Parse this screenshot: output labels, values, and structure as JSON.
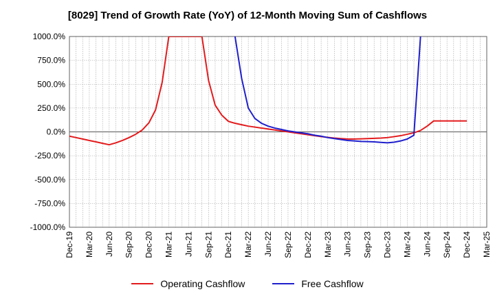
{
  "chart_data": {
    "type": "line",
    "title": "[8029]  Trend of Growth Rate (YoY) of 12-Month Moving Sum of Cashflows",
    "xlabel": "",
    "ylabel": "",
    "ylim": [
      -1000,
      1000
    ],
    "y_ticks": [
      "1000.0%",
      "750.0%",
      "500.0%",
      "250.0%",
      "0.0%",
      "-250.0%",
      "-500.0%",
      "-750.0%",
      "-1000.0%"
    ],
    "x_ticks": [
      "Dec-19",
      "Mar-20",
      "Jun-20",
      "Sep-20",
      "Dec-20",
      "Mar-21",
      "Jun-21",
      "Sep-21",
      "Dec-21",
      "Mar-22",
      "Jun-22",
      "Sep-22",
      "Dec-22",
      "Mar-23",
      "Jun-23",
      "Sep-23",
      "Dec-23",
      "Mar-24",
      "Jun-24",
      "Sep-24",
      "Dec-24",
      "Mar-25"
    ],
    "grid": true,
    "legend_position": "bottom",
    "series": [
      {
        "name": "Operating Cashflow",
        "color": "#e31a1c",
        "x": [
          "2019-12",
          "2020-01",
          "2020-02",
          "2020-03",
          "2020-04",
          "2020-05",
          "2020-06",
          "2020-07",
          "2020-08",
          "2020-09",
          "2020-10",
          "2020-11",
          "2020-12",
          "2021-01",
          "2021-02",
          "2021-03",
          "2021-08",
          "2021-09",
          "2021-10",
          "2021-11",
          "2021-12",
          "2022-01",
          "2022-02",
          "2022-03",
          "2022-04",
          "2022-05",
          "2022-06",
          "2022-07",
          "2022-08",
          "2022-09",
          "2022-10",
          "2022-11",
          "2022-12",
          "2023-01",
          "2023-02",
          "2023-03",
          "2023-04",
          "2023-05",
          "2023-06",
          "2023-07",
          "2023-08",
          "2023-09",
          "2023-10",
          "2023-11",
          "2023-12",
          "2024-01",
          "2024-02",
          "2024-03",
          "2024-04",
          "2024-05",
          "2024-06",
          "2024-07",
          "2024-08",
          "2024-09",
          "2024-10",
          "2024-11",
          "2024-12"
        ],
        "values": [
          -45,
          -60,
          -75,
          -90,
          -105,
          -120,
          -135,
          -115,
          -90,
          -60,
          -25,
          20,
          95,
          230,
          520,
          1000,
          1000,
          540,
          280,
          175,
          110,
          90,
          75,
          60,
          50,
          40,
          30,
          20,
          10,
          0,
          -10,
          -20,
          -30,
          -40,
          -50,
          -58,
          -65,
          -70,
          -75,
          -75,
          -73,
          -70,
          -68,
          -65,
          -60,
          -50,
          -40,
          -25,
          -10,
          15,
          60,
          115,
          115,
          115,
          115,
          115,
          115
        ]
      },
      {
        "name": "Free Cashflow",
        "color": "#1f1fcc",
        "x": [
          "2022-01",
          "2022-02",
          "2022-03",
          "2022-04",
          "2022-05",
          "2022-06",
          "2022-07",
          "2022-08",
          "2022-09",
          "2022-10",
          "2022-11",
          "2022-12",
          "2023-01",
          "2023-02",
          "2023-03",
          "2023-04",
          "2023-05",
          "2023-06",
          "2023-07",
          "2023-08",
          "2023-09",
          "2023-10",
          "2023-11",
          "2023-12",
          "2024-01",
          "2024-02",
          "2024-03",
          "2024-04",
          "2024-05"
        ],
        "values": [
          1000,
          560,
          250,
          140,
          90,
          60,
          40,
          25,
          10,
          0,
          -10,
          -20,
          -35,
          -45,
          -60,
          -70,
          -80,
          -90,
          -95,
          -100,
          -102,
          -105,
          -110,
          -115,
          -108,
          -95,
          -75,
          -35,
          1000
        ]
      }
    ]
  }
}
